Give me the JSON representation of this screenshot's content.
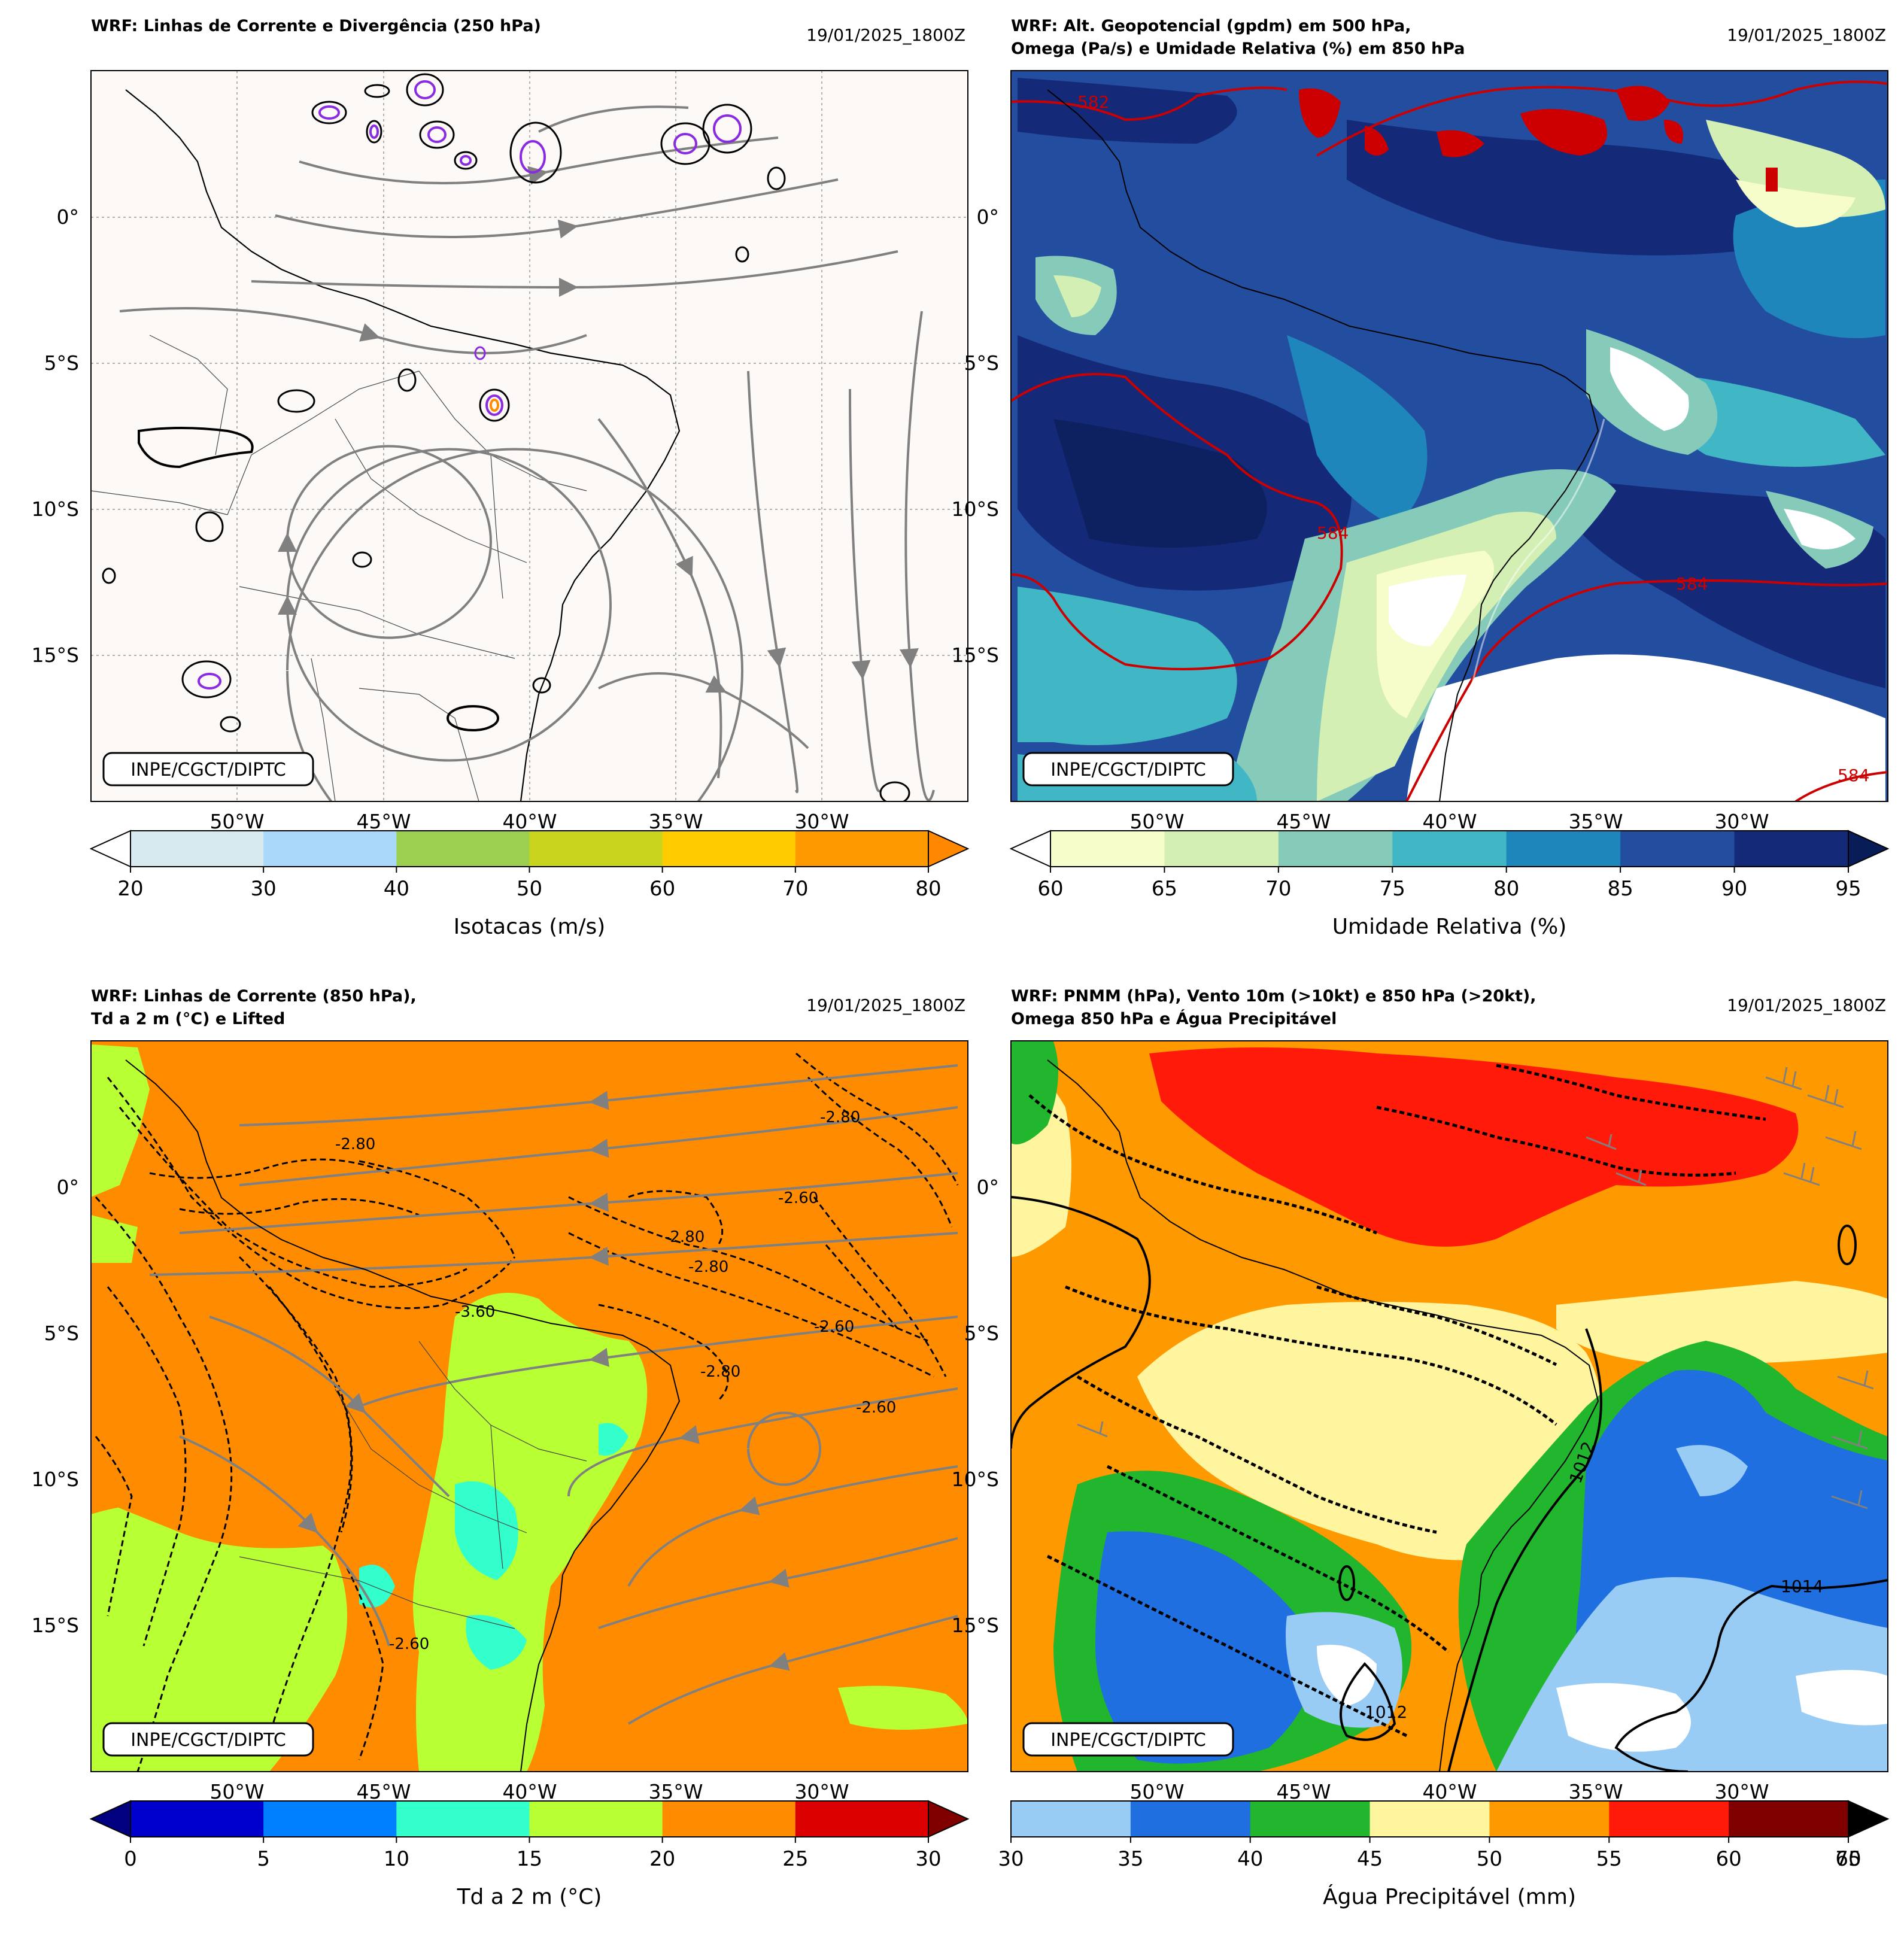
{
  "panels": [
    {
      "id": "p1",
      "title_lines": [
        "WRF: Linhas de Corrente e Divergência (250 hPa)"
      ],
      "date": "19/01/2025_1800Z",
      "credit": "INPE/CGCT/DIPTC",
      "cbar_label": "Isotacas (m/s)",
      "cbar_ticks": [
        "20",
        "30",
        "40",
        "50",
        "60",
        "70",
        "80"
      ],
      "cbar_colors": [
        "#d6eaf0",
        "#a9d8fa",
        "#9ccf4f",
        "#c8d41e",
        "#ffcc00",
        "#ff9900"
      ],
      "cbar_min_color": "#ffffff",
      "cbar_max_color": "#ff8800",
      "contour_labels": []
    },
    {
      "id": "p2",
      "title_lines": [
        "WRF: Alt. Geopotencial (gpdm) em 500 hPa,",
        "Omega (Pa/s) e Umidade Relativa (%) em 850 hPa"
      ],
      "date": "19/01/2025_1800Z",
      "credit": "INPE/CGCT/DIPTC",
      "cbar_label": "Umidade Relativa (%)",
      "cbar_ticks": [
        "60",
        "65",
        "70",
        "75",
        "80",
        "85",
        "90",
        "95"
      ],
      "cbar_colors": [
        "#f7fccb",
        "#d4efb4",
        "#86cbb9",
        "#41b6c4",
        "#1f86bb",
        "#234ea0",
        "#142a78"
      ],
      "cbar_min_color": "#ffffff",
      "cbar_max_color": "#081d58",
      "contour_labels": [
        "582",
        "584",
        "584",
        "584"
      ]
    },
    {
      "id": "p3",
      "title_lines": [
        "WRF: Linhas de Corrente (850 hPa),",
        "Td a 2 m (°C) e Lifted"
      ],
      "date": "19/01/2025_1800Z",
      "credit": "INPE/CGCT/DIPTC",
      "cbar_label": "Td a 2 m (°C)",
      "cbar_ticks": [
        "0",
        "5",
        "10",
        "15",
        "20",
        "25",
        "30"
      ],
      "cbar_colors": [
        "#0000cc",
        "#0080ff",
        "#33ffcc",
        "#b8ff33",
        "#ff8c00",
        "#dd0000"
      ],
      "cbar_min_color": "#000080",
      "cbar_max_color": "#800000",
      "contour_labels": [
        "-2.80",
        "-2.80",
        "-2.60",
        "-2.80",
        "-2.80",
        "-3.60",
        "-2.80",
        "-2.60",
        "-2.60",
        "-2.60"
      ]
    },
    {
      "id": "p4",
      "title_lines": [
        "WRF: PNMM (hPa), Vento 10m (>10kt) e 850 hPa (>20kt),",
        "Omega 850 hPa e Água Precipitável"
      ],
      "date": "19/01/2025_1800Z",
      "credit": "INPE/CGCT/DIPTC",
      "cbar_label": "Água Precipitável (mm)",
      "cbar_ticks": [
        "30",
        "35",
        "40",
        "45",
        "50",
        "55",
        "60",
        "65"
      ],
      "cbar_extra_tick": "70",
      "cbar_colors": [
        "#99ccf5",
        "#1f6fe0",
        "#22b52e",
        "#fff59e",
        "#ff9900",
        "#ff1a0a",
        "#800000"
      ],
      "cbar_min_color": "#99ccf5",
      "cbar_max_color": "#000000",
      "contour_labels": [
        "1012",
        "1014",
        "1012"
      ]
    }
  ],
  "lon_labels": [
    "50°W",
    "45°W",
    "40°W",
    "35°W",
    "30°W"
  ],
  "lat_labels": [
    "0°",
    "5°S",
    "10°S",
    "15°S"
  ]
}
